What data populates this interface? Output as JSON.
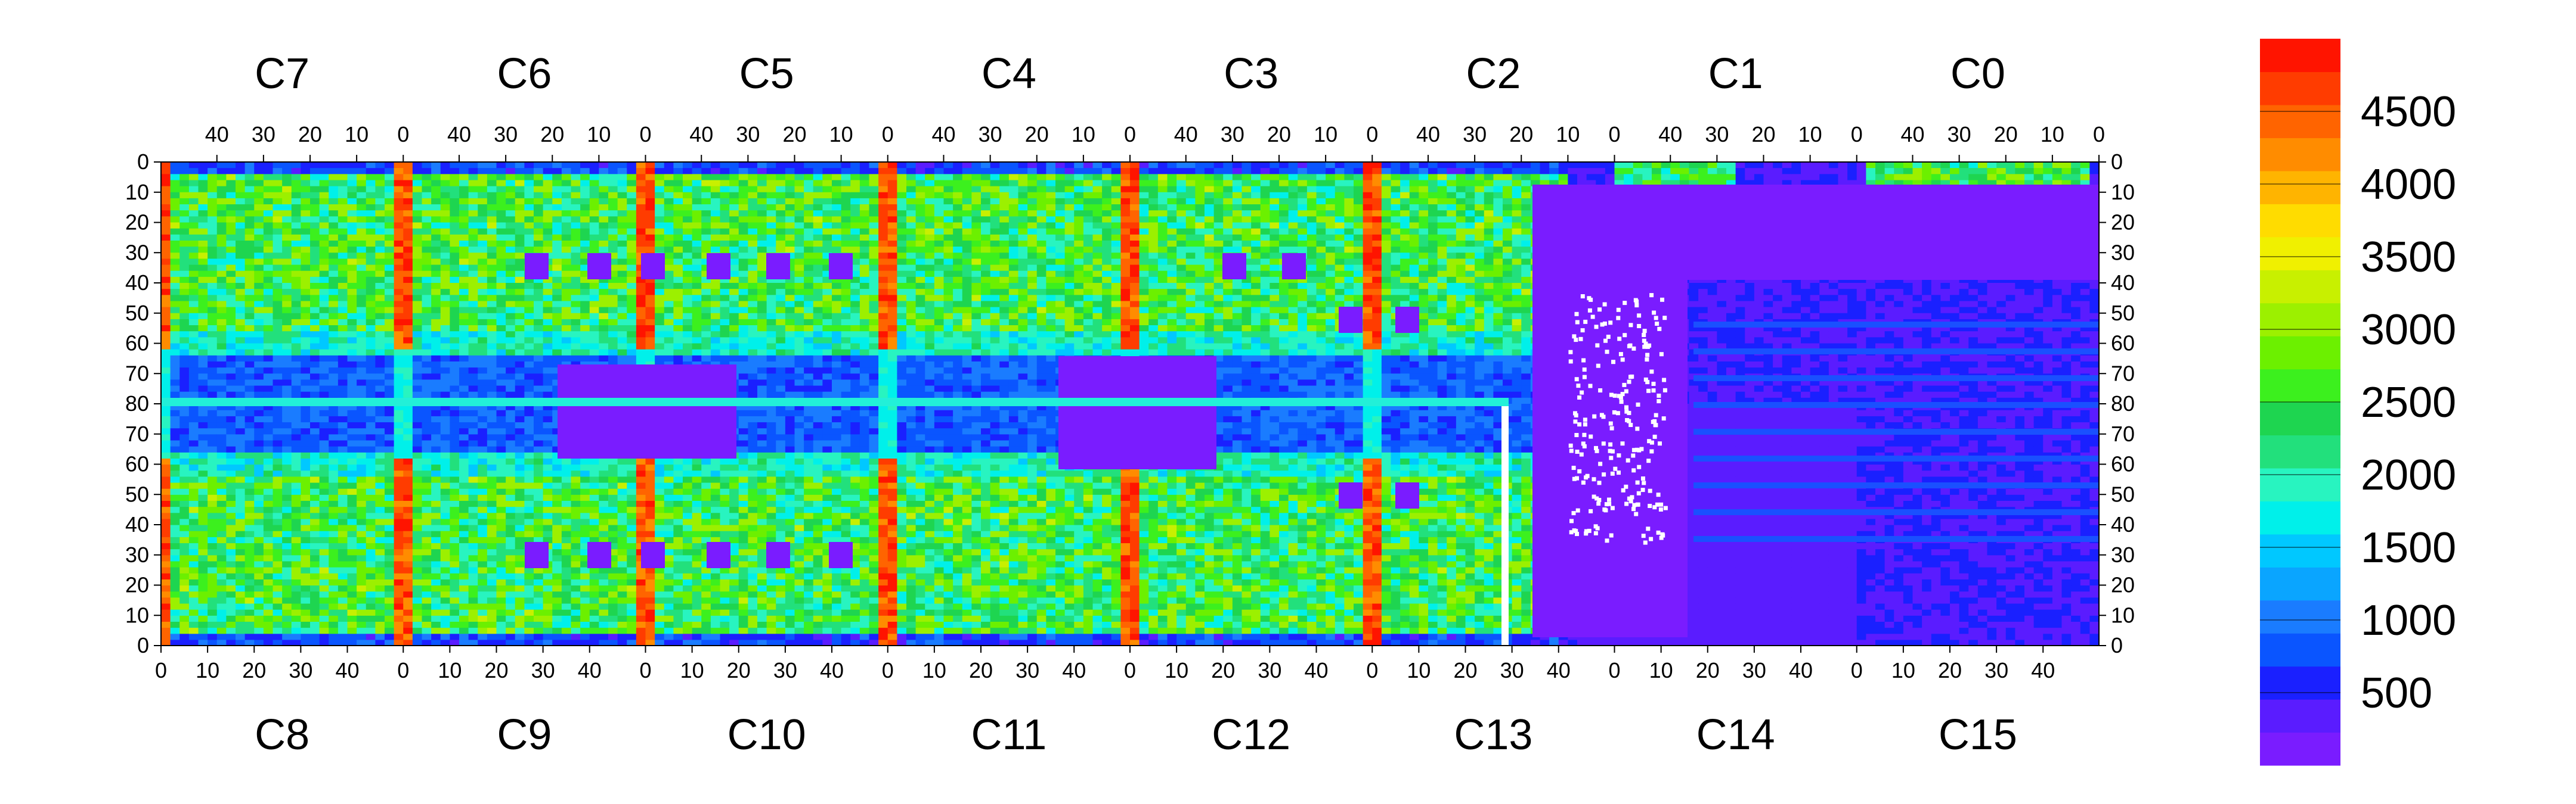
{
  "chart_data": {
    "type": "heatmap",
    "title": "",
    "xlabel": "",
    "ylabel": "",
    "chips_top": [
      "C7",
      "C6",
      "C5",
      "C4",
      "C3",
      "C2",
      "C1",
      "C0"
    ],
    "chips_bottom": [
      "C8",
      "C9",
      "C10",
      "C11",
      "C12",
      "C13",
      "C14",
      "C15"
    ],
    "top_axis_ticks": [
      40,
      30,
      20,
      10,
      0
    ],
    "bottom_axis_ticks": [
      0,
      10,
      20,
      30,
      40
    ],
    "left_axis_ticks_top_half": [
      0,
      10,
      20,
      30,
      40,
      50,
      60,
      70,
      80
    ],
    "left_axis_ticks_bottom_half": [
      70,
      60,
      50,
      40,
      30,
      20,
      10,
      0
    ],
    "columns_per_chip": 52,
    "rows_per_half": 80,
    "colorbar": {
      "min": 0,
      "max": 5000,
      "tick_labels": [
        "500",
        "1000",
        "1500",
        "2000",
        "2500",
        "3000",
        "3500",
        "4000",
        "4500"
      ],
      "tick_values": [
        500,
        1000,
        1500,
        2000,
        2500,
        3000,
        3500,
        4000,
        4500
      ],
      "colors": [
        "#7a1cff",
        "#5a1cff",
        "#1a20ff",
        "#0a55ff",
        "#1a7cff",
        "#0aa5ff",
        "#00c8ff",
        "#00f0ea",
        "#28f4c0",
        "#22e07c",
        "#1ed550",
        "#3cf01e",
        "#6cf000",
        "#9cf000",
        "#c8f000",
        "#f0f000",
        "#ffdc00",
        "#ffb400",
        "#ff8c00",
        "#ff6400",
        "#ff3c00",
        "#ff1400"
      ]
    },
    "dead_region": "C13/C14 bottom-right; C1/C14 right of the white separator, low counts (~300)",
    "hot_columns": "vertical red stripes at chip boundaries (~4500+)",
    "bad_row": "horizontal cyan/green line at row 80 (central)",
    "grid": false
  }
}
